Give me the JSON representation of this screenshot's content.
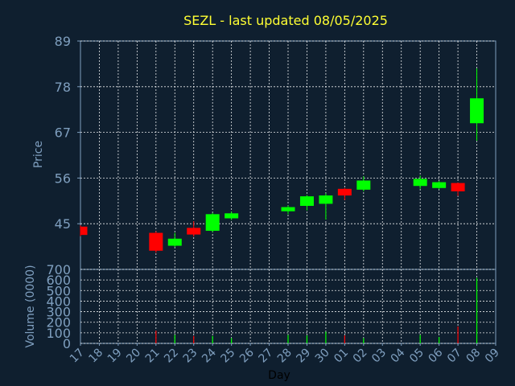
{
  "chart_data": {
    "type": "candlestick",
    "title": "SEZL - last updated 08/05/2025",
    "xlabel": "Day",
    "price_panel": {
      "ylabel": "Price",
      "ylim": [
        34,
        89
      ],
      "yticks": [
        "89",
        "78",
        "67",
        "56",
        "45"
      ],
      "grid": true
    },
    "volume_panel": {
      "ylabel": "Volume (0000)",
      "ylim": [
        0,
        700
      ],
      "yticks": [
        "700",
        "600",
        "500",
        "400",
        "300",
        "200",
        "100",
        "0"
      ],
      "grid": true
    },
    "categories": [
      "17",
      "18",
      "19",
      "20",
      "21",
      "22",
      "23",
      "24",
      "25",
      "26",
      "27",
      "28",
      "29",
      "30",
      "01",
      "02",
      "03",
      "04",
      "05",
      "06",
      "07",
      "08",
      "09"
    ],
    "candles": [
      {
        "day": "17",
        "open": 44.3,
        "close": 42.3,
        "high": 44.6,
        "low": 42.0,
        "volume": 0
      },
      {
        "day": "21",
        "open": 42.8,
        "close": 38.5,
        "high": 43.2,
        "low": 38.0,
        "volume": 120
      },
      {
        "day": "22",
        "open": 39.7,
        "close": 41.4,
        "high": 42.8,
        "low": 39.4,
        "volume": 80
      },
      {
        "day": "23",
        "open": 44.0,
        "close": 42.4,
        "high": 45.6,
        "low": 41.9,
        "volume": 70
      },
      {
        "day": "24",
        "open": 43.3,
        "close": 47.3,
        "high": 47.6,
        "low": 43.0,
        "volume": 70
      },
      {
        "day": "25",
        "open": 46.3,
        "close": 47.5,
        "high": 47.9,
        "low": 45.9,
        "volume": 50
      },
      {
        "day": "28",
        "open": 48.0,
        "close": 49.0,
        "high": 49.4,
        "low": 47.3,
        "volume": 80
      },
      {
        "day": "29",
        "open": 49.3,
        "close": 51.6,
        "high": 51.9,
        "low": 48.2,
        "volume": 75
      },
      {
        "day": "30",
        "open": 49.8,
        "close": 51.8,
        "high": 52.3,
        "low": 46.0,
        "volume": 110
      },
      {
        "day": "01",
        "open": 53.4,
        "close": 51.8,
        "high": 53.6,
        "low": 50.7,
        "volume": 75
      },
      {
        "day": "02",
        "open": 53.2,
        "close": 55.4,
        "high": 56.4,
        "low": 52.8,
        "volume": 50
      },
      {
        "day": "05",
        "open": 54.1,
        "close": 55.8,
        "high": 56.6,
        "low": 53.4,
        "volume": 80
      },
      {
        "day": "06",
        "open": 53.6,
        "close": 55.0,
        "high": 55.3,
        "low": 53.3,
        "volume": 60
      },
      {
        "day": "07",
        "open": 54.8,
        "close": 52.8,
        "high": 54.9,
        "low": 51.7,
        "volume": 160
      },
      {
        "day": "08",
        "open": 69.2,
        "close": 75.2,
        "high": 82.4,
        "low": 65.0,
        "volume": 620
      }
    ],
    "colors": {
      "up": "#00ff00",
      "down": "#ff0000",
      "background": "#0f1f2f",
      "axis": "#7f9fbf",
      "grid": "#ffffff",
      "title": "#ffff33"
    }
  }
}
